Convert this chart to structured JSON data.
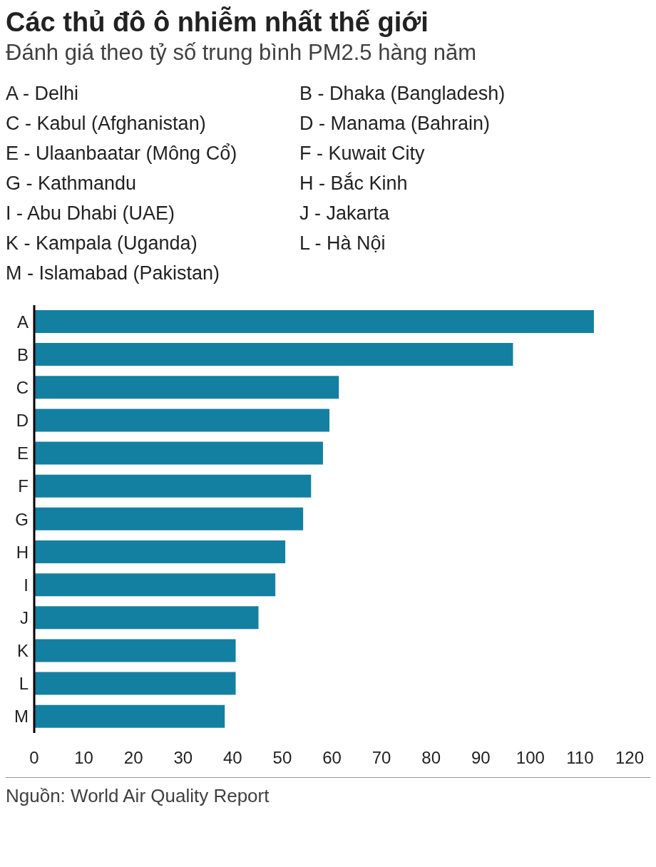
{
  "chart_data": {
    "type": "bar",
    "orientation": "horizontal",
    "title": "Các thủ đô ô nhiễm nhất thế giới",
    "subtitle": "Đánh giá theo tỷ số trung bình PM2.5 hàng năm",
    "categories": [
      "A",
      "B",
      "C",
      "D",
      "E",
      "F",
      "G",
      "H",
      "I",
      "J",
      "K",
      "L",
      "M"
    ],
    "values": [
      112.8,
      96.5,
      61.4,
      59.5,
      58.2,
      55.8,
      54.2,
      50.6,
      48.6,
      45.2,
      40.6,
      40.6,
      38.4
    ],
    "color": "#1380a1",
    "xlim": [
      0,
      120
    ],
    "xticks": [
      0,
      10,
      20,
      30,
      40,
      50,
      60,
      70,
      80,
      90,
      100,
      110,
      120
    ],
    "grid": false,
    "legend": false,
    "annotations": [
      "A - Delhi",
      "B - Dhaka (Bangladesh)",
      "C - Kabul (Afghanistan)",
      "D - Manama (Bahrain)",
      "E - Ulaanbaatar (Mông Cổ)",
      "F - Kuwait City",
      "G - Kathmandu",
      "H - Bắc Kinh",
      "I - Abu Dhabi (UAE)",
      "J - Jakarta",
      "K - Kampala (Uganda)",
      "L - Hà Nội",
      "M - Islamabad (Pakistan)",
      "Nguồn: World Air Quality Report"
    ]
  }
}
